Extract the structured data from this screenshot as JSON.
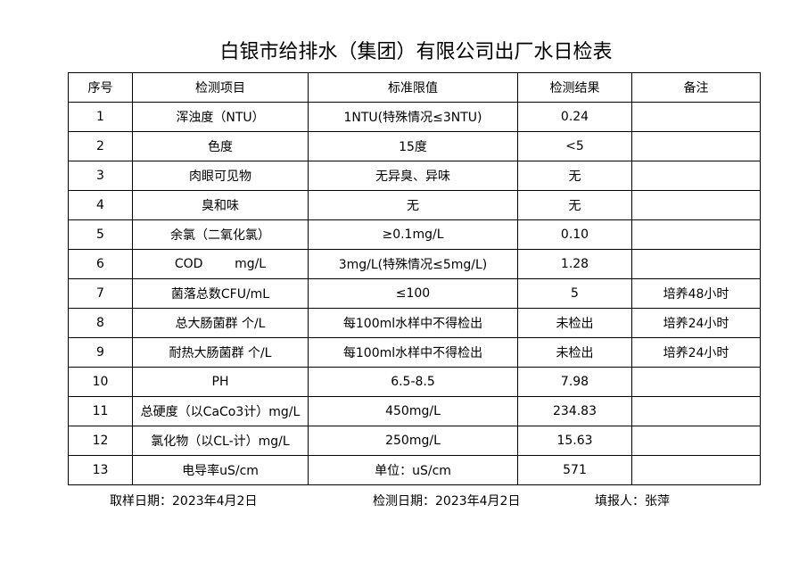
{
  "title": "白银市给排水（集团）有限公司出厂水日检表",
  "headers": [
    "序号",
    "检测项目",
    "标准限值",
    "检测结果",
    "备注"
  ],
  "rows": [
    [
      "1",
      "浑浊度（NTU）",
      "1NTU(特殊情况≤3NTU)",
      "0.24",
      ""
    ],
    [
      "2",
      "色度",
      "15度",
      "<5",
      ""
    ],
    [
      "3",
      "肉眼可见物",
      "无异臭、异味",
      "无",
      ""
    ],
    [
      "4",
      "臭和味",
      "无",
      "无",
      ""
    ],
    [
      "5",
      "余氯（二氧化氯）",
      "≥0.1mg/L",
      "0.10",
      ""
    ],
    [
      "6",
      "COD        mg/L",
      "3mg/L(特殊情况≤5mg/L)",
      "1.28",
      ""
    ],
    [
      "7",
      "菌落总数CFU/mL",
      "≤100",
      "5",
      "培养48小时"
    ],
    [
      "8",
      "总大肠菌群 个/L",
      "每100ml水样中不得检出",
      "未检出",
      "培养24小时"
    ],
    [
      "9",
      "耐热大肠菌群 个/L",
      "每100ml水样中不得检出",
      "未检出",
      "培养24小时"
    ],
    [
      "10",
      "PH",
      "6.5-8.5",
      "7.98",
      ""
    ],
    [
      "11",
      "总硬度（以CaCo3计）mg/L",
      "450mg/L",
      "234.83",
      ""
    ],
    [
      "12",
      "氯化物（以CL-计）mg/L",
      "250mg/L",
      "15.63",
      ""
    ],
    [
      "13",
      "电导率uS/cm",
      "单位：uS/cm",
      "571",
      ""
    ]
  ],
  "footer": {
    "sampling_date": "取样日期：2023年4月2日",
    "test_date": "检测日期：2023年4月2日",
    "reporter": "填报人：张萍"
  }
}
